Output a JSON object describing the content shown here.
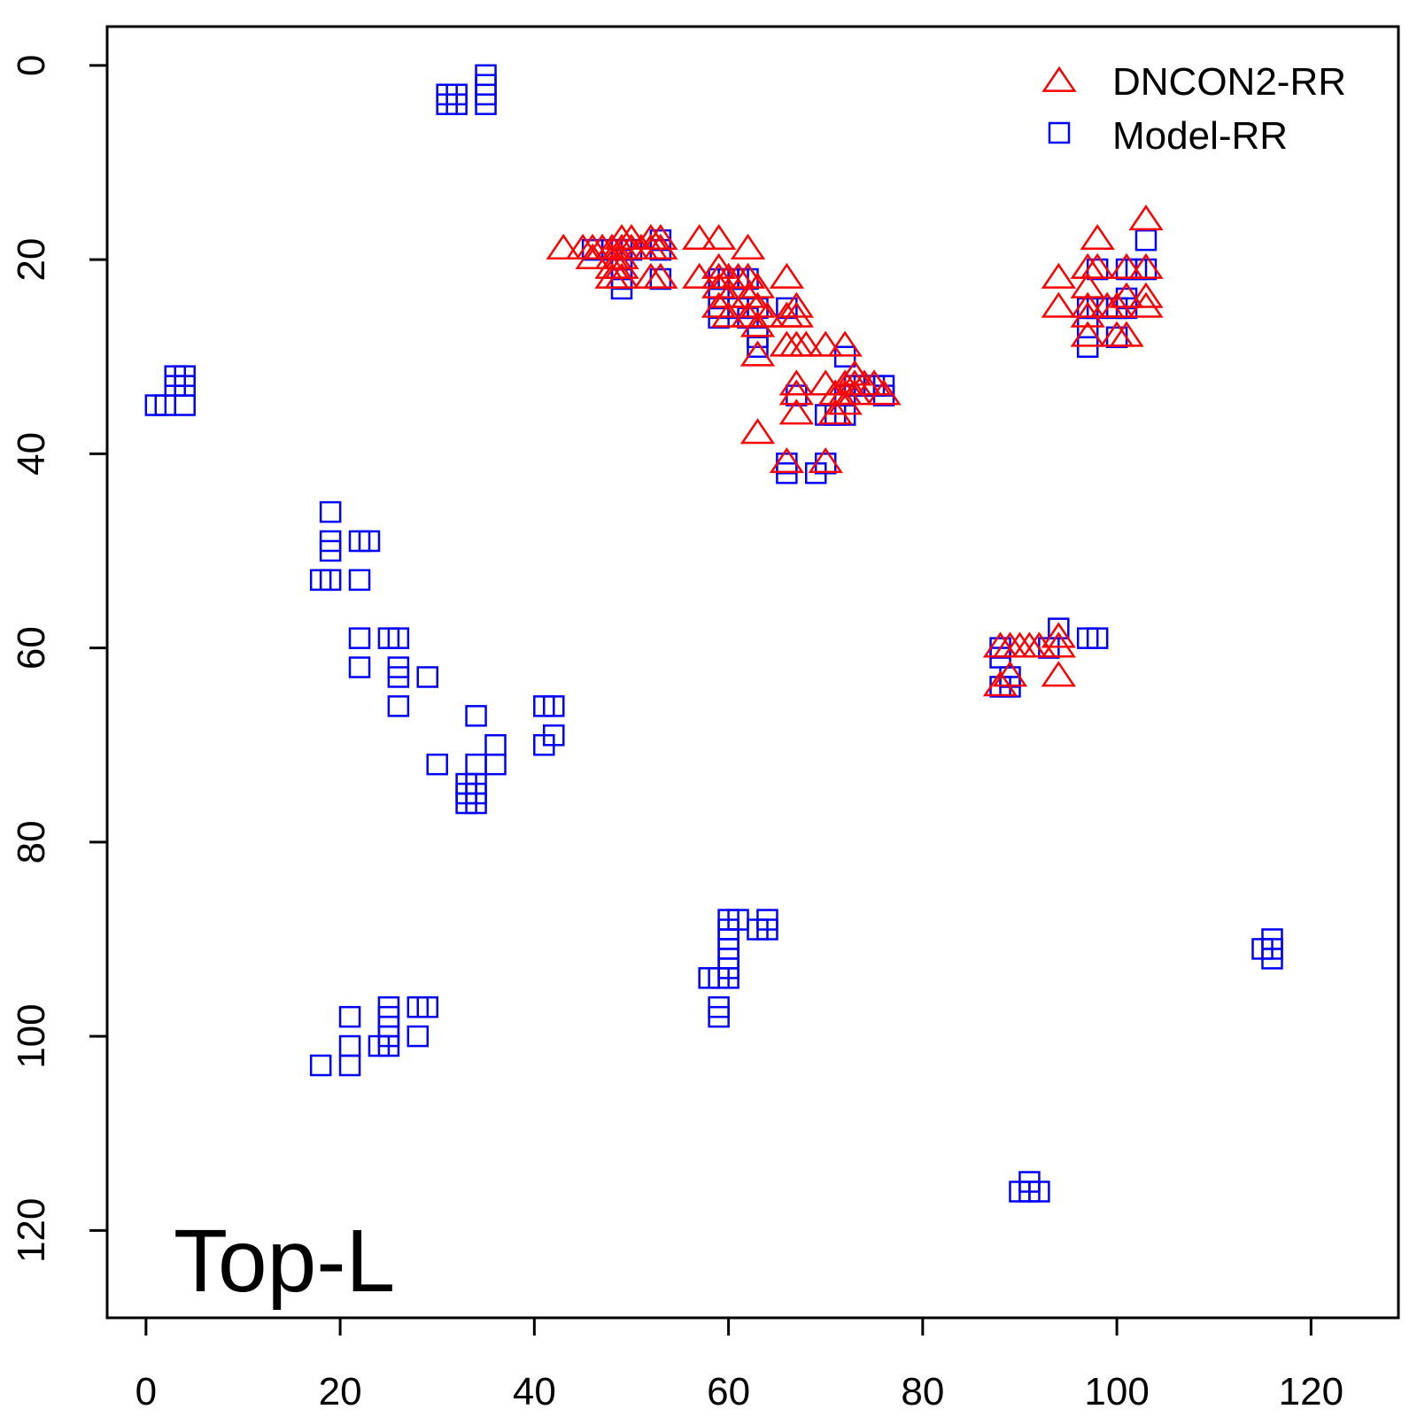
{
  "chart_data": {
    "type": "scatter",
    "panel_label": "Top-L",
    "xlim": [
      -4,
      129
    ],
    "ylim": [
      -4,
      129
    ],
    "y_reversed": true,
    "x_ticks": [
      0,
      20,
      40,
      60,
      80,
      100,
      120
    ],
    "y_ticks": [
      0,
      20,
      40,
      60,
      80,
      100,
      120
    ],
    "legend_position": "top-right",
    "series": [
      {
        "name": "DNCON2-RR",
        "marker": "triangle",
        "color": "#ff0000",
        "points": [
          [
            43,
            19
          ],
          [
            45,
            19
          ],
          [
            46,
            19
          ],
          [
            46,
            20
          ],
          [
            47,
            19
          ],
          [
            48,
            19
          ],
          [
            48,
            20
          ],
          [
            48,
            21
          ],
          [
            48,
            22
          ],
          [
            49,
            18
          ],
          [
            49,
            19
          ],
          [
            49,
            20
          ],
          [
            49,
            21
          ],
          [
            49,
            22
          ],
          [
            50,
            18
          ],
          [
            50,
            19
          ],
          [
            51,
            19
          ],
          [
            52,
            18
          ],
          [
            52,
            19
          ],
          [
            52,
            22
          ],
          [
            53,
            18
          ],
          [
            53,
            19
          ],
          [
            53,
            22
          ],
          [
            57,
            18
          ],
          [
            57,
            22
          ],
          [
            59,
            18
          ],
          [
            59,
            21
          ],
          [
            59,
            22
          ],
          [
            59,
            23
          ],
          [
            59,
            25
          ],
          [
            60,
            22
          ],
          [
            60,
            24
          ],
          [
            60,
            26
          ],
          [
            61,
            22
          ],
          [
            62,
            19
          ],
          [
            62,
            22
          ],
          [
            62,
            24
          ],
          [
            62,
            26
          ],
          [
            63,
            23
          ],
          [
            63,
            25
          ],
          [
            63,
            27
          ],
          [
            63,
            30
          ],
          [
            64,
            26
          ],
          [
            63,
            38
          ],
          [
            66,
            22
          ],
          [
            66,
            26
          ],
          [
            66,
            29
          ],
          [
            66,
            41
          ],
          [
            67,
            25
          ],
          [
            67,
            26
          ],
          [
            67,
            29
          ],
          [
            67,
            33
          ],
          [
            67,
            34
          ],
          [
            67,
            36
          ],
          [
            68,
            29
          ],
          [
            70,
            29
          ],
          [
            70,
            33
          ],
          [
            70,
            41
          ],
          [
            71,
            34
          ],
          [
            71,
            36
          ],
          [
            72,
            29
          ],
          [
            72,
            33
          ],
          [
            72,
            34
          ],
          [
            72,
            35
          ],
          [
            73,
            32
          ],
          [
            73,
            33
          ],
          [
            73,
            34
          ],
          [
            74,
            33
          ],
          [
            75,
            33
          ],
          [
            76,
            34
          ],
          [
            94,
            22
          ],
          [
            94,
            25
          ],
          [
            97,
            21
          ],
          [
            97,
            23
          ],
          [
            97,
            25
          ],
          [
            97,
            26
          ],
          [
            97,
            28
          ],
          [
            98,
            18
          ],
          [
            98,
            21
          ],
          [
            99,
            25
          ],
          [
            100,
            25
          ],
          [
            100,
            28
          ],
          [
            101,
            21
          ],
          [
            101,
            24
          ],
          [
            101,
            28
          ],
          [
            103,
            16
          ],
          [
            103,
            21
          ],
          [
            103,
            24
          ],
          [
            103,
            25
          ],
          [
            88,
            60
          ],
          [
            88,
            64
          ],
          [
            89,
            60
          ],
          [
            89,
            63
          ],
          [
            90,
            60
          ],
          [
            91,
            60
          ],
          [
            92,
            60
          ],
          [
            94,
            59
          ],
          [
            94,
            60
          ],
          [
            94,
            63
          ]
        ]
      },
      {
        "name": "Model-RR",
        "marker": "square",
        "color": "#0000ff",
        "points": [
          [
            31,
            3
          ],
          [
            31,
            4
          ],
          [
            32,
            3
          ],
          [
            32,
            4
          ],
          [
            35,
            1
          ],
          [
            35,
            2
          ],
          [
            35,
            3
          ],
          [
            35,
            4
          ],
          [
            1,
            35
          ],
          [
            2,
            35
          ],
          [
            3,
            32
          ],
          [
            3,
            33
          ],
          [
            4,
            32
          ],
          [
            4,
            33
          ],
          [
            4,
            35
          ],
          [
            19,
            46
          ],
          [
            19,
            49
          ],
          [
            19,
            50
          ],
          [
            18,
            53
          ],
          [
            19,
            53
          ],
          [
            22,
            49
          ],
          [
            23,
            49
          ],
          [
            22,
            53
          ],
          [
            22,
            59
          ],
          [
            22,
            62
          ],
          [
            25,
            59
          ],
          [
            26,
            59
          ],
          [
            26,
            62
          ],
          [
            26,
            63
          ],
          [
            26,
            66
          ],
          [
            29,
            63
          ],
          [
            34,
            67
          ],
          [
            30,
            72
          ],
          [
            34,
            72
          ],
          [
            36,
            70
          ],
          [
            36,
            72
          ],
          [
            33,
            74
          ],
          [
            33,
            75
          ],
          [
            33,
            76
          ],
          [
            34,
            74
          ],
          [
            34,
            75
          ],
          [
            34,
            76
          ],
          [
            41,
            66
          ],
          [
            42,
            66
          ],
          [
            41,
            70
          ],
          [
            42,
            69
          ],
          [
            18,
            103
          ],
          [
            21,
            98
          ],
          [
            21,
            101
          ],
          [
            21,
            103
          ],
          [
            24,
            101
          ],
          [
            25,
            97
          ],
          [
            25,
            98
          ],
          [
            25,
            99
          ],
          [
            25,
            100
          ],
          [
            25,
            101
          ],
          [
            28,
            97
          ],
          [
            29,
            97
          ],
          [
            28,
            100
          ],
          [
            58,
            94
          ],
          [
            59,
            94
          ],
          [
            60,
            94
          ],
          [
            59,
            97
          ],
          [
            59,
            98
          ],
          [
            60,
            88
          ],
          [
            60,
            89
          ],
          [
            60,
            90
          ],
          [
            60,
            91
          ],
          [
            60,
            92
          ],
          [
            60,
            93
          ],
          [
            61,
            88
          ],
          [
            63,
            89
          ],
          [
            64,
            88
          ],
          [
            64,
            89
          ],
          [
            115,
            91
          ],
          [
            116,
            90
          ],
          [
            116,
            91
          ],
          [
            116,
            92
          ],
          [
            91,
            115
          ],
          [
            91,
            116
          ],
          [
            92,
            116
          ],
          [
            90,
            116
          ],
          [
            46,
            19
          ],
          [
            48,
            19
          ],
          [
            49,
            19
          ],
          [
            49,
            20
          ],
          [
            49,
            21
          ],
          [
            49,
            22
          ],
          [
            49,
            23
          ],
          [
            50,
            19
          ],
          [
            53,
            18
          ],
          [
            53,
            19
          ],
          [
            53,
            22
          ],
          [
            59,
            22
          ],
          [
            59,
            24
          ],
          [
            59,
            25
          ],
          [
            59,
            26
          ],
          [
            60,
            22
          ],
          [
            61,
            22
          ],
          [
            61,
            25
          ],
          [
            62,
            22
          ],
          [
            62,
            26
          ],
          [
            63,
            25
          ],
          [
            63,
            28
          ],
          [
            63,
            29
          ],
          [
            66,
            25
          ],
          [
            66,
            41
          ],
          [
            66,
            42
          ],
          [
            67,
            34
          ],
          [
            69,
            42
          ],
          [
            70,
            36
          ],
          [
            70,
            41
          ],
          [
            71,
            36
          ],
          [
            72,
            30
          ],
          [
            72,
            34
          ],
          [
            72,
            36
          ],
          [
            73,
            33
          ],
          [
            74,
            33
          ],
          [
            75,
            33
          ],
          [
            76,
            33
          ],
          [
            76,
            34
          ],
          [
            88,
            60
          ],
          [
            88,
            61
          ],
          [
            88,
            64
          ],
          [
            89,
            63
          ],
          [
            89,
            64
          ],
          [
            93,
            60
          ],
          [
            94,
            58
          ],
          [
            97,
            59
          ],
          [
            98,
            59
          ],
          [
            97,
            25
          ],
          [
            97,
            27
          ],
          [
            97,
            29
          ],
          [
            98,
            21
          ],
          [
            98,
            25
          ],
          [
            100,
            25
          ],
          [
            100,
            28
          ],
          [
            101,
            24
          ],
          [
            101,
            25
          ],
          [
            101,
            21
          ],
          [
            102,
            21
          ],
          [
            103,
            18
          ],
          [
            103,
            21
          ]
        ]
      }
    ]
  }
}
